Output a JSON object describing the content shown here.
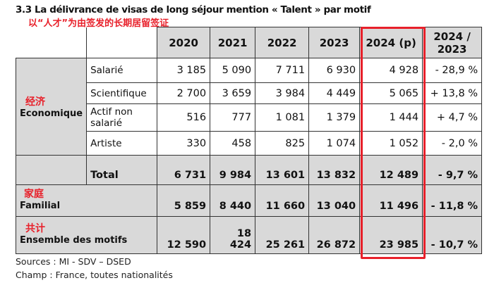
{
  "title": "3.3 La délivrance de visas de long séjour mention « Talent » par motif",
  "subtitle_cn": "以“人才”为由签发的长期居留签证",
  "columns": [
    "2020",
    "2021",
    "2022",
    "2023",
    "2024 (p)",
    "2024 / 2023"
  ],
  "economique": {
    "label": "Economique",
    "label_cn": "经济",
    "rows": [
      {
        "label": "Salarié",
        "values": [
          "3 185",
          "5 090",
          "7 711",
          "6 930",
          "4 928",
          "- 28,9 %"
        ]
      },
      {
        "label": "Scientifique",
        "values": [
          "2 700",
          "3 659",
          "3 984",
          "4 449",
          "5 065",
          "+ 13,8 %"
        ]
      },
      {
        "label": "Actif non salarié",
        "values": [
          "516",
          "777",
          "1 081",
          "1 379",
          "1 444",
          "+ 4,7 %"
        ]
      },
      {
        "label": "Artiste",
        "values": [
          "330",
          "458",
          "825",
          "1 074",
          "1 052",
          "- 2,0 %"
        ]
      },
      {
        "label": "Total",
        "values": [
          "6 731",
          "9 984",
          "13 601",
          "13 832",
          "12 489",
          "- 9,7 %"
        ]
      }
    ]
  },
  "familial": {
    "label": "Familial",
    "label_cn": "家庭",
    "values": [
      "5 859",
      "8 440",
      "11 660",
      "13 040",
      "11 496",
      "- 11,8 %"
    ]
  },
  "ensemble": {
    "label": "Ensemble des motifs",
    "label_cn": "共计",
    "values": [
      "12 590",
      "18 424",
      "25 261",
      "26 872",
      "23 985",
      "- 10,7 %"
    ]
  },
  "sources": "Sources : MI - SDV – DSED",
  "champ": "Champ : France, toutes nationalités",
  "highlight_color": "#e8202a"
}
